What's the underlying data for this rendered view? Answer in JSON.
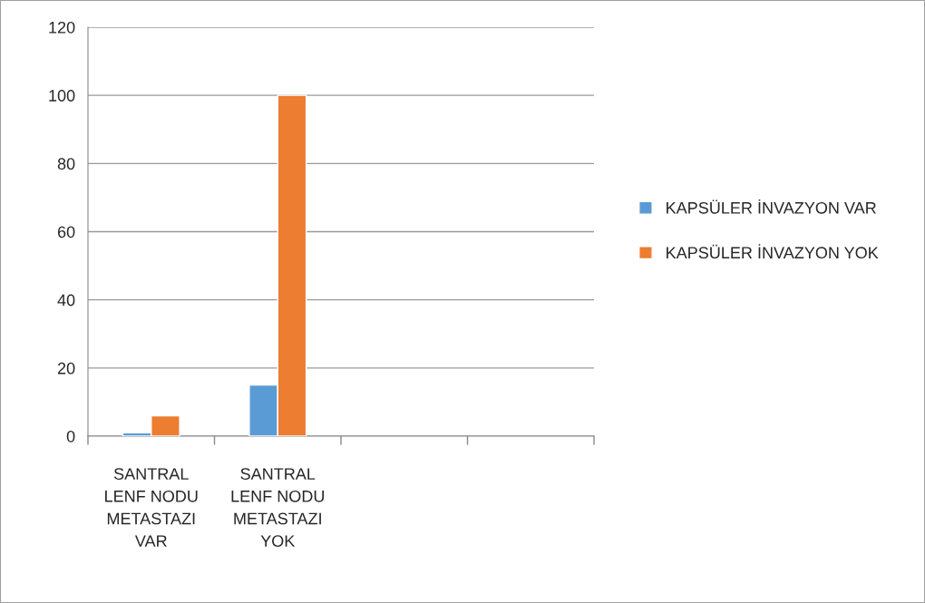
{
  "chart_data": {
    "type": "bar",
    "categories": [
      "SANTRAL\nLENF NODU\nMETASTAZI\nVAR",
      "SANTRAL\nLENF NODU\nMETASTAZI\nYOK",
      null,
      null
    ],
    "series": [
      {
        "name": "KAPSÜLER İNVAZYON VAR",
        "color": "#5b9bd5",
        "values": [
          1,
          15,
          null,
          null
        ]
      },
      {
        "name": "KAPSÜLER İNVAZYON YOK",
        "color": "#ed7d31",
        "values": [
          6,
          100,
          null,
          null
        ]
      }
    ],
    "ylim": [
      0,
      120
    ],
    "yticks": [
      0,
      20,
      40,
      60,
      80,
      100,
      120
    ],
    "grid": "y",
    "legend": "right"
  }
}
